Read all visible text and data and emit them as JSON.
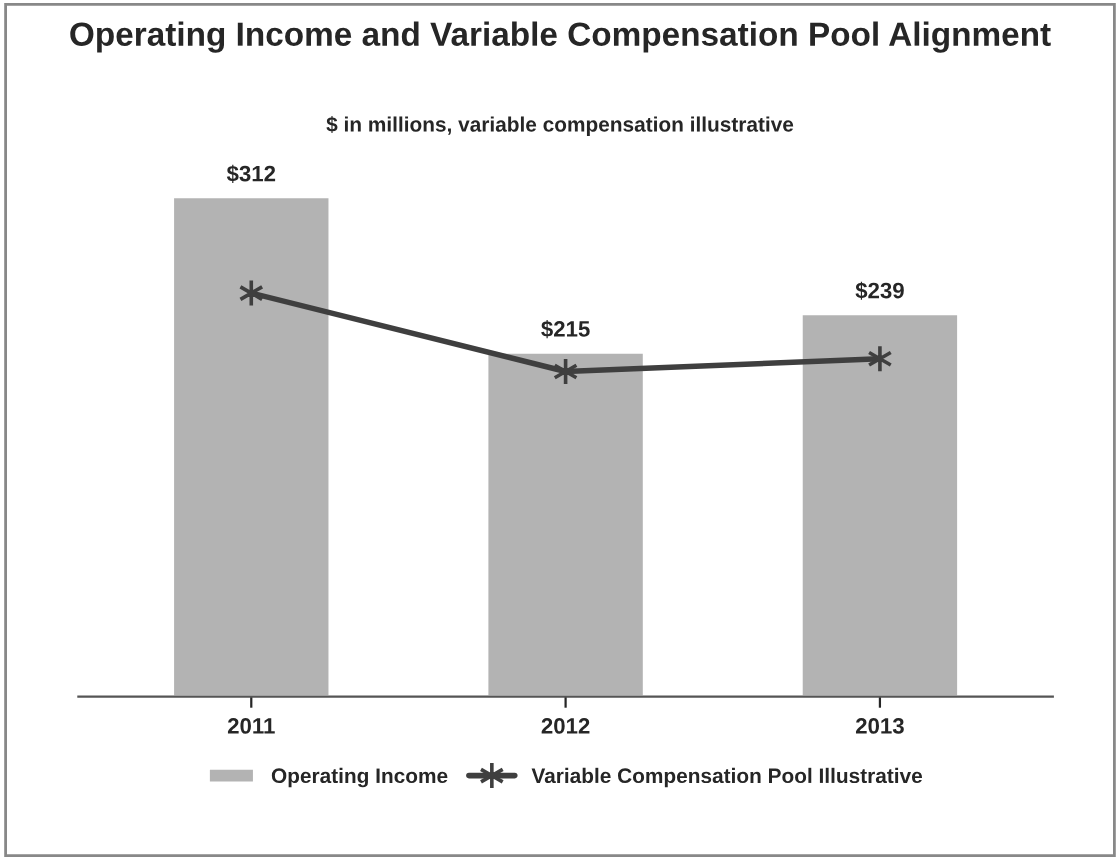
{
  "chart_data": {
    "type": "bar",
    "title": "Operating Income and Variable Compensation Pool Alignment",
    "subtitle": "$ in millions, variable compensation illustrative",
    "categories": [
      "2011",
      "2012",
      "2013"
    ],
    "series": [
      {
        "name": "Operating Income",
        "color": "#b3b3b3",
        "values": [
          312,
          215,
          239
        ],
        "value_labels": [
          "$312",
          "$215",
          "$239"
        ]
      },
      {
        "name": "Variable Compensation Pool Illustrative",
        "type": "line",
        "color": "#3f3f3f",
        "values": [
          252,
          203,
          211
        ],
        "marker": "cross"
      }
    ],
    "tick_labels": "x",
    "grid": false,
    "legend": "bottom"
  }
}
